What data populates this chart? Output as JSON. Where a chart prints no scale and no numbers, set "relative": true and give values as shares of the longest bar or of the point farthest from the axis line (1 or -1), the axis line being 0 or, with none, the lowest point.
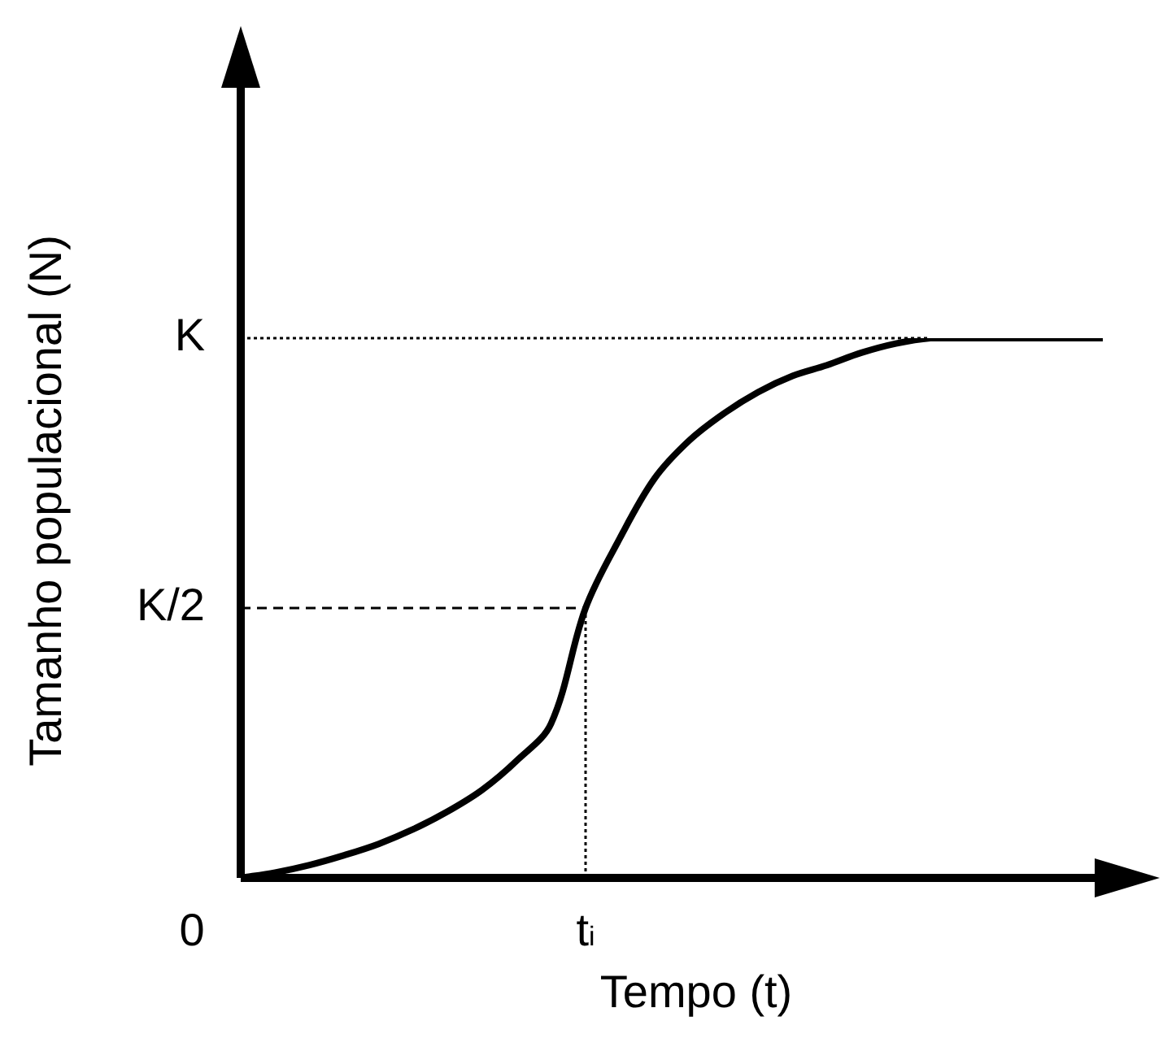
{
  "chart_data": {
    "type": "line",
    "relative": true,
    "xlabel": "Tempo (t)",
    "ylabel": "Tamanho populacional (N)",
    "categories": [
      null,
      null,
      null,
      null,
      null,
      null,
      null,
      null,
      null,
      null,
      null,
      null,
      null,
      null,
      null,
      null,
      null,
      null,
      null,
      null,
      null,
      null,
      null,
      null,
      null,
      null
    ],
    "series": [
      {
        "color": "#000000",
        "values": [
          0,
          0.01,
          0.024,
          0.042,
          0.063,
          0.09,
          0.123,
          0.163,
          0.217,
          0.286,
          0.5,
          0.63,
          0.74,
          0.81,
          0.86,
          0.9,
          0.93,
          0.95,
          0.973,
          0.99,
          1,
          1,
          1,
          1,
          1,
          1
        ]
      }
    ],
    "ref_lines": [
      {
        "axis": "y",
        "value": 1,
        "label": "K",
        "line_style": "dotted",
        "color": "#000000"
      },
      {
        "axis": "y",
        "value": 0.5,
        "label": "K/2",
        "line_style": "dashed",
        "color": "#000000"
      }
    ],
    "annotations": [
      "0",
      "t$_{i}$"
    ],
    "marker": "none",
    "line_style": "solid",
    "legend": false
  }
}
